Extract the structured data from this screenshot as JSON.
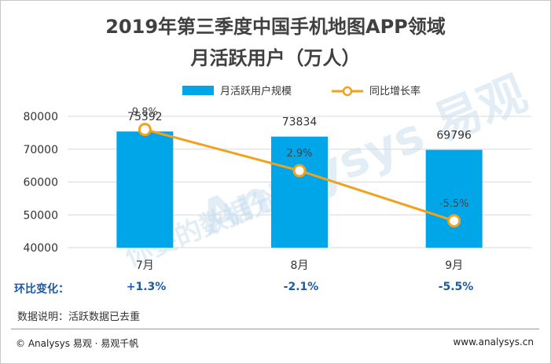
{
  "title_line1": "2019年第三季度中国手机地图APP领域",
  "title_line2": "月活跃用户（万人）",
  "colors": {
    "bar": "#00a6e8",
    "line": "#f2a11e",
    "marker_fill": "#ffffff",
    "grid": "#d9d9d9",
    "accent_text": "#1f5aa6"
  },
  "chart_data": {
    "type": "bar",
    "categories": [
      "7月",
      "8月",
      "9月"
    ],
    "ylim": [
      40000,
      80000
    ],
    "yticks": [
      40000,
      50000,
      60000,
      70000,
      80000
    ],
    "grid": true,
    "legend_position": "top",
    "series": [
      {
        "name": "月活跃用户规模",
        "type": "bar",
        "values": [
          75392,
          73834,
          69796
        ],
        "labels": [
          "75392",
          "73834",
          "69796"
        ]
      },
      {
        "name": "同比增长率",
        "type": "line",
        "values": [
          9.8,
          2.9,
          -5.5
        ],
        "labels": [
          "9.8%",
          "2.9%",
          "-5.5%"
        ]
      }
    ]
  },
  "mom_row": {
    "label": "环比变化：",
    "values": [
      "+1.3%",
      "-2.1%",
      "-5.5%"
    ]
  },
  "note": "数据说明：活跃数据已去重",
  "footer": {
    "left": "© Analysys 易观 · 易观千帆",
    "right": "www.analysys.cn"
  },
  "watermark": {
    "text1": "Analysys 易观",
    "text2": "你要的数据分析力"
  }
}
